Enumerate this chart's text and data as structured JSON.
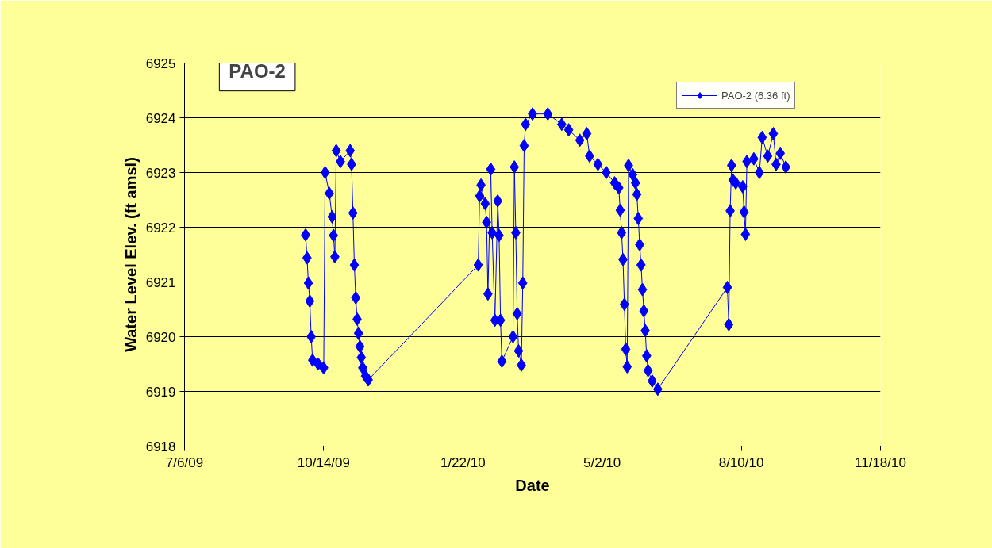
{
  "chart_data": {
    "type": "line",
    "title": "PAO-2",
    "xlabel": "Date",
    "ylabel": "Water Level Elev. (ft amsl)",
    "x": [
      "2009-10-01",
      "2009-10-02",
      "2009-10-03",
      "2009-10-04",
      "2009-10-05",
      "2009-10-06",
      "2009-10-10",
      "2009-10-14",
      "2009-10-15",
      "2009-10-18",
      "2009-10-20",
      "2009-10-21",
      "2009-10-22",
      "2009-10-23",
      "2009-10-26",
      "2009-11-02",
      "2009-11-03",
      "2009-11-04",
      "2009-11-05",
      "2009-11-06",
      "2009-11-07",
      "2009-11-08",
      "2009-11-09",
      "2009-11-10",
      "2009-11-11",
      "2009-11-13",
      "2009-11-15",
      "2010-02-02",
      "2010-02-03",
      "2010-02-04",
      "2010-02-07",
      "2010-02-08",
      "2010-02-09",
      "2010-02-11",
      "2010-02-12",
      "2010-02-14",
      "2010-02-16",
      "2010-02-17",
      "2010-02-18",
      "2010-02-19",
      "2010-02-27",
      "2010-02-28",
      "2010-03-01",
      "2010-03-02",
      "2010-03-03",
      "2010-03-05",
      "2010-03-06",
      "2010-03-07",
      "2010-03-08",
      "2010-03-13",
      "2010-03-24",
      "2010-04-03",
      "2010-04-08",
      "2010-04-16",
      "2010-04-21",
      "2010-04-23",
      "2010-04-29",
      "2010-05-05",
      "2010-05-11",
      "2010-05-14",
      "2010-05-15",
      "2010-05-16",
      "2010-05-17",
      "2010-05-18",
      "2010-05-19",
      "2010-05-20",
      "2010-05-21",
      "2010-05-24",
      "2010-05-26",
      "2010-05-27",
      "2010-05-28",
      "2010-05-29",
      "2010-05-30",
      "2010-05-31",
      "2010-06-01",
      "2010-06-02",
      "2010-06-03",
      "2010-06-04",
      "2010-06-07",
      "2010-06-11",
      "2010-07-31",
      "2010-08-01",
      "2010-08-02",
      "2010-08-03",
      "2010-08-04",
      "2010-08-06",
      "2010-08-11",
      "2010-08-12",
      "2010-08-13",
      "2010-08-14",
      "2010-08-19",
      "2010-08-23",
      "2010-08-25",
      "2010-08-29",
      "2010-09-02",
      "2010-09-04",
      "2010-09-07",
      "2010-09-11"
    ],
    "series": [
      {
        "name": "PAO-2 (6.36 ft)",
        "color": "#0000ff",
        "values": [
          6921.86,
          6921.44,
          6920.98,
          6920.65,
          6920.0,
          6919.57,
          6919.5,
          6919.43,
          6923.0,
          6922.62,
          6922.19,
          6921.85,
          6921.46,
          6923.4,
          6923.2,
          6923.4,
          6923.15,
          6922.26,
          6921.31,
          6920.71,
          6920.32,
          6920.06,
          6919.82,
          6919.62,
          6919.43,
          6919.28,
          6919.21,
          6921.31,
          6922.57,
          6922.77,
          6922.43,
          6922.09,
          6920.78,
          6923.06,
          6921.9,
          6920.3,
          6922.48,
          6921.85,
          6920.3,
          6919.55,
          6920.0,
          6923.1,
          6921.9,
          6920.42,
          6919.74,
          6919.48,
          6920.98,
          6923.49,
          6923.88,
          6924.07,
          6924.07,
          6923.88,
          6923.78,
          6923.59,
          6923.71,
          6923.3,
          6923.15,
          6923.0,
          6922.81,
          6922.72,
          6922.31,
          6921.9,
          6921.41,
          6920.59,
          6919.77,
          6919.45,
          6923.13,
          6922.96,
          6922.81,
          6922.6,
          6922.16,
          6921.68,
          6921.31,
          6920.86,
          6920.47,
          6920.11,
          6919.65,
          6919.38,
          6919.19,
          6919.04,
          6920.9,
          6920.22,
          6922.3,
          6923.13,
          6922.86,
          6922.81,
          6922.74,
          6922.28,
          6921.87,
          6923.2,
          6923.25,
          6923.0,
          6923.64,
          6923.3,
          6923.71,
          6923.15,
          6923.35,
          6923.1
        ]
      }
    ],
    "xlim": [
      "2009-07-06",
      "2010-11-18"
    ],
    "xticks": [
      {
        "value": "2009-07-06",
        "label": "7/6/09"
      },
      {
        "value": "2009-10-14",
        "label": "10/14/09"
      },
      {
        "value": "2010-01-22",
        "label": "1/22/10"
      },
      {
        "value": "2010-05-02",
        "label": "5/2/10"
      },
      {
        "value": "2010-08-10",
        "label": "8/10/10"
      },
      {
        "value": "2010-11-18",
        "label": "11/18/10"
      }
    ],
    "ylim": [
      6918,
      6925
    ],
    "yticks": [
      6918,
      6919,
      6920,
      6921,
      6922,
      6923,
      6924,
      6925
    ],
    "grid": "y",
    "legend": "top right",
    "marker": "diamond",
    "line_style": "solid"
  }
}
